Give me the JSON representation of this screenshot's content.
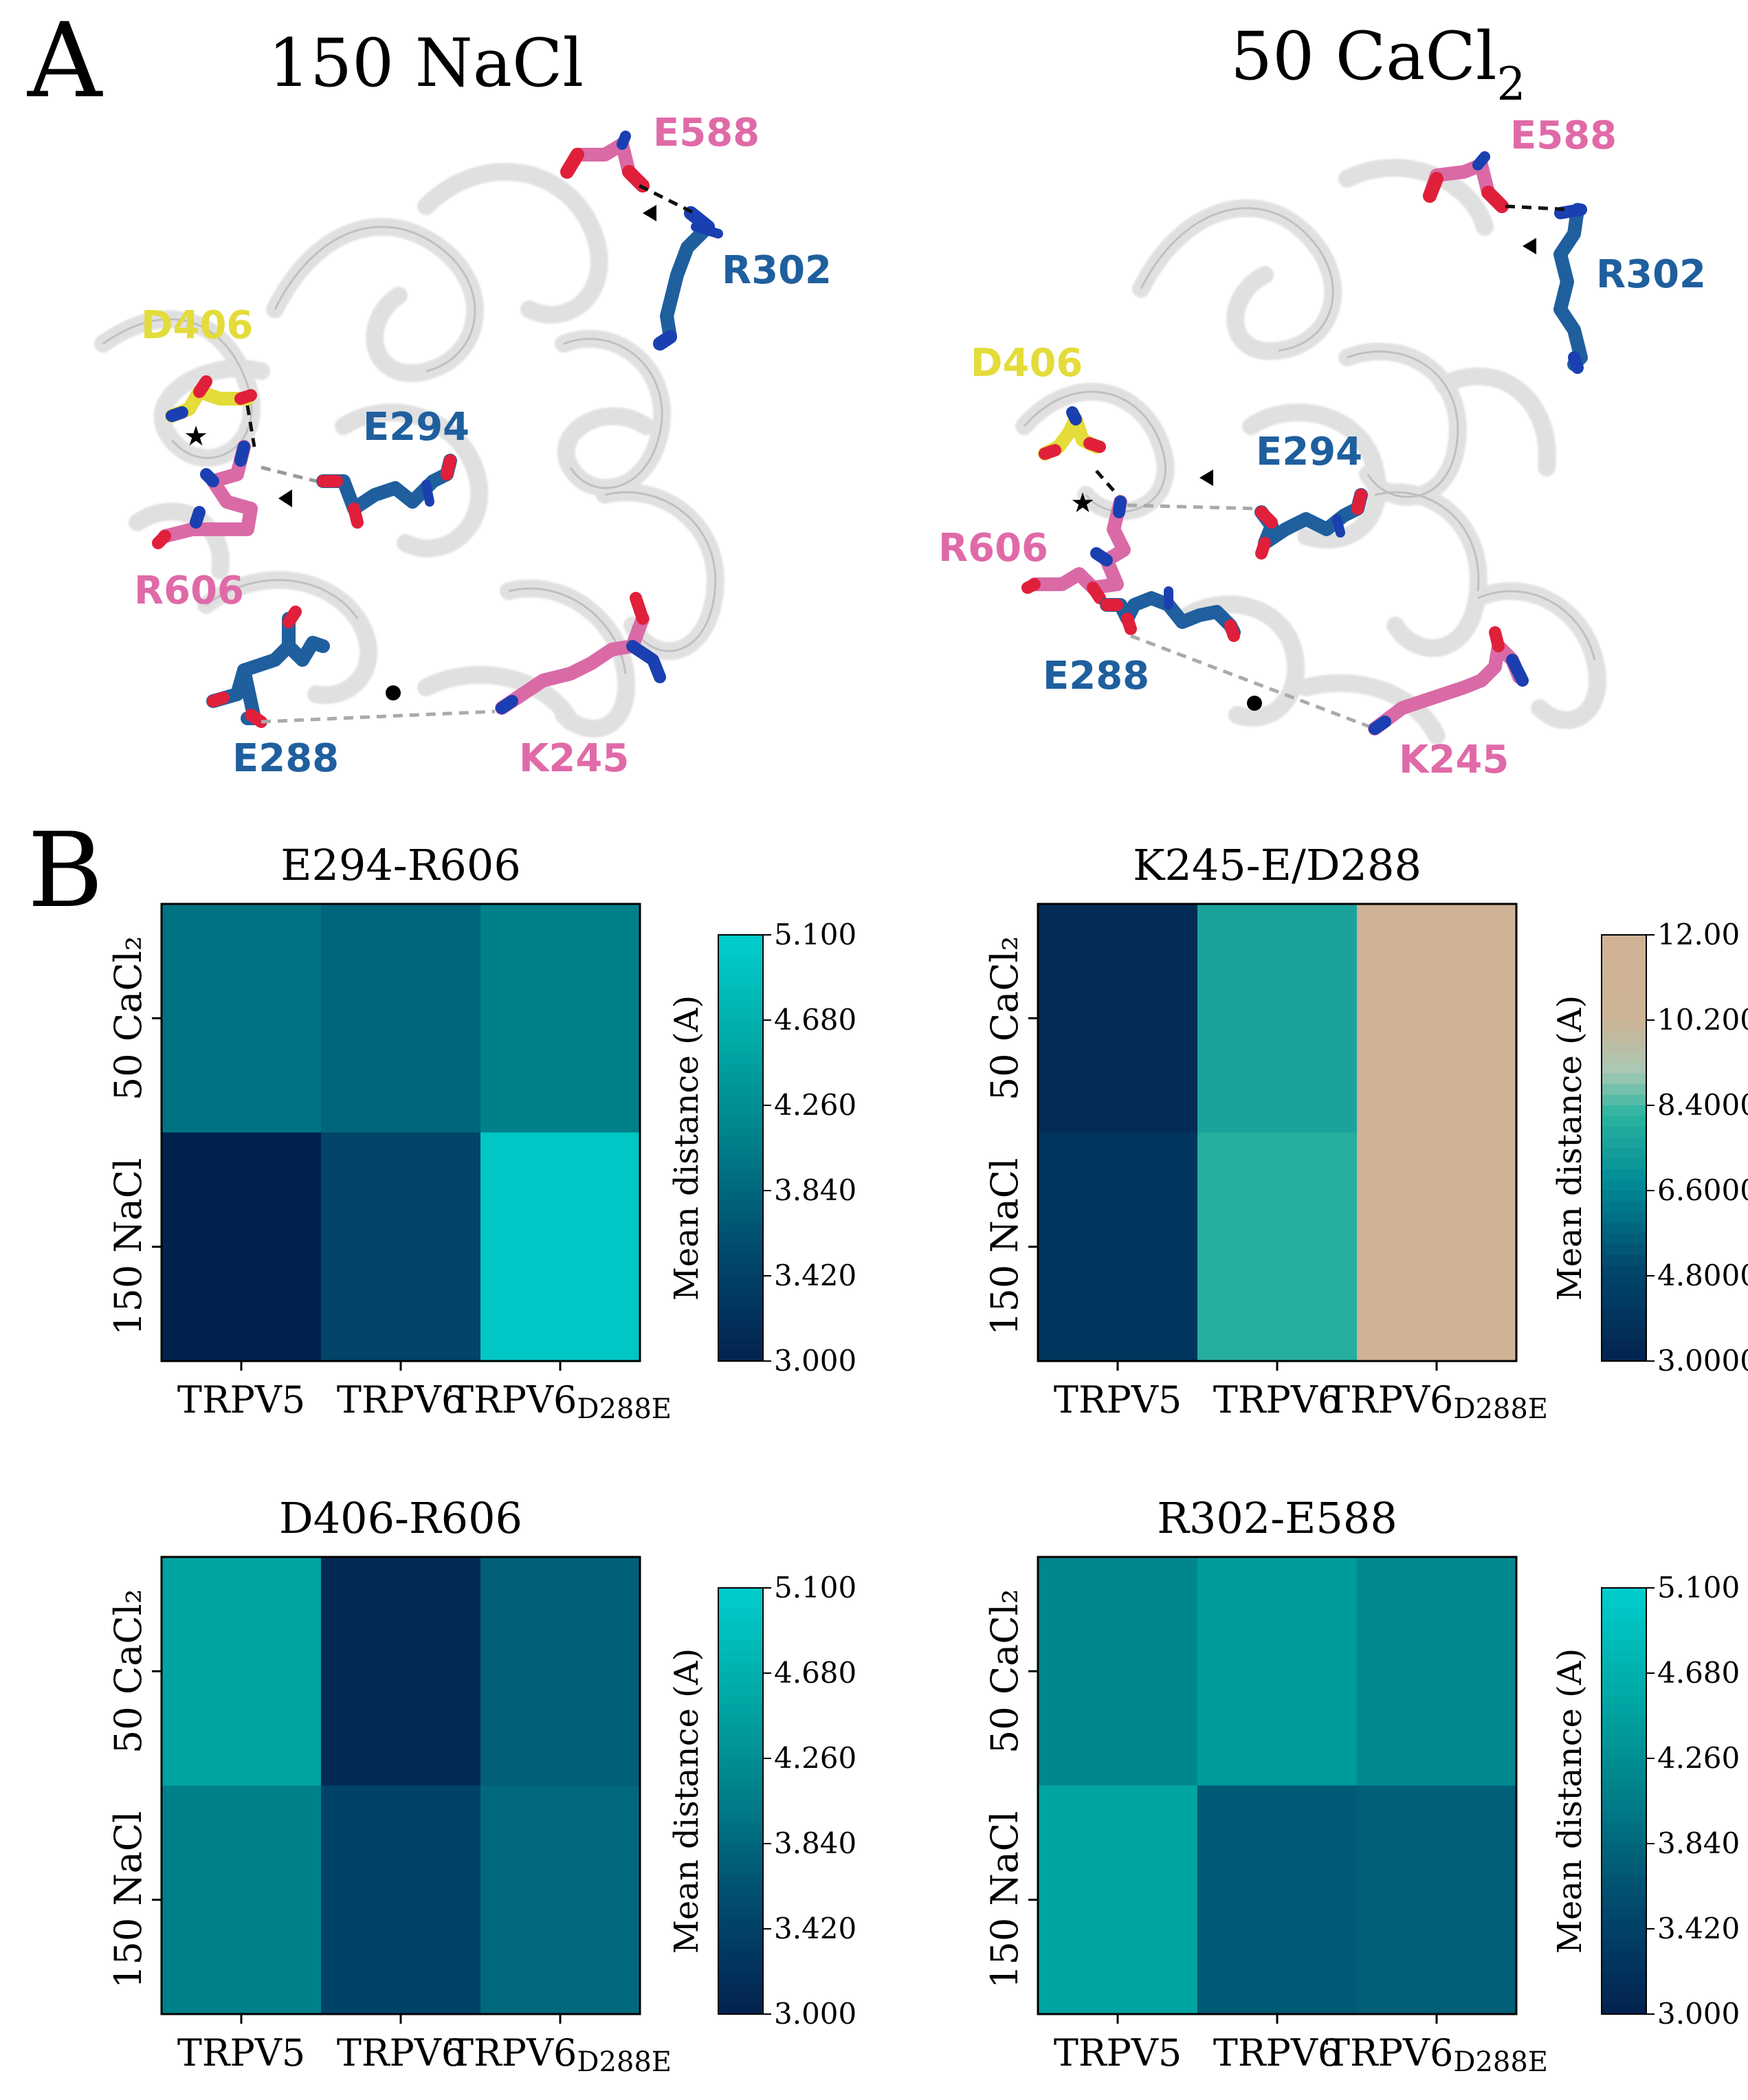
{
  "panel_a": {
    "panel_letter": "A",
    "left_title": "150 NaCl",
    "right_title_main": "50 CaCl",
    "right_title_sub": "2",
    "colors": {
      "tm": "#1f5f9e",
      "pink": "#e06aa8",
      "yellow": "#e3dc3a",
      "ribbon": "#cfcfcf"
    },
    "left_labels": {
      "e588": "E588",
      "r302": "R302",
      "d406": "D406",
      "e294": "E294",
      "r606": "R606",
      "e288": "E288",
      "k245": "K245"
    },
    "right_labels": {
      "e588": "E588",
      "r302": "R302",
      "d406": "D406",
      "e294": "E294",
      "r606": "R606",
      "e288": "E288",
      "k245": "K245"
    }
  },
  "panel_b": {
    "panel_letter": "B"
  },
  "chart_data": [
    {
      "type": "heatmap",
      "title": "E294-R606",
      "rows": [
        "50 CaCl₂",
        "150 NaCl"
      ],
      "columns": [
        "TRPV5",
        "TRPV6",
        "TRPV6D288E"
      ],
      "values": [
        [
          3.95,
          3.82,
          4.1
        ],
        [
          3.0,
          3.48,
          5.0
        ]
      ],
      "colorbar": {
        "label": "Mean distance (A)",
        "range": [
          3.0,
          5.1
        ],
        "ticks": [
          "5.100",
          "4.680",
          "4.260",
          "3.840",
          "3.420",
          "3.000"
        ]
      }
    },
    {
      "type": "heatmap",
      "title": "K245-E/D288",
      "rows": [
        "50 CaCl₂",
        "150 NaCl"
      ],
      "columns": [
        "TRPV5",
        "TRPV6",
        "TRPV6D288E"
      ],
      "values": [
        [
          3.5,
          7.6,
          12.0
        ],
        [
          4.0,
          8.0,
          12.0
        ]
      ],
      "colorbar": {
        "label": "Mean distance (A)",
        "range": [
          3.0,
          12.0
        ],
        "ticks": [
          "12.00",
          "10.200",
          "8.4000",
          "6.6000",
          "4.8000",
          "3.0000"
        ]
      }
    },
    {
      "type": "heatmap",
      "title": "D406-R606",
      "rows": [
        "50 CaCl₂",
        "150 NaCl"
      ],
      "columns": [
        "TRPV5",
        "TRPV6",
        "TRPV6D288E"
      ],
      "values": [
        [
          4.5,
          3.1,
          3.75
        ],
        [
          4.1,
          3.45,
          3.85
        ]
      ],
      "colorbar": {
        "label": "Mean distance (A)",
        "range": [
          3.0,
          5.1
        ],
        "ticks": [
          "5.100",
          "4.680",
          "4.260",
          "3.840",
          "3.420",
          "3.000"
        ]
      }
    },
    {
      "type": "heatmap",
      "title": "R302-E588",
      "rows": [
        "50 CaCl₂",
        "150 NaCl"
      ],
      "columns": [
        "TRPV5",
        "TRPV6",
        "TRPV6D288E"
      ],
      "values": [
        [
          4.15,
          4.4,
          4.2
        ],
        [
          4.5,
          3.7,
          3.75
        ]
      ],
      "colorbar": {
        "label": "Mean distance (A)",
        "range": [
          3.0,
          5.1
        ],
        "ticks": [
          "5.100",
          "4.680",
          "4.260",
          "3.840",
          "3.420",
          "3.000"
        ]
      }
    }
  ]
}
